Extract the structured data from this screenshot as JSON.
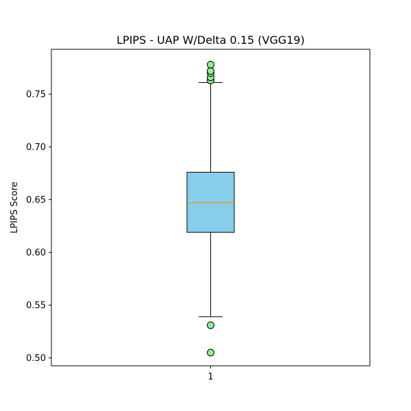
{
  "chart_data": {
    "type": "box",
    "title": "LPIPS - UAP W/Delta 0.15 (VGG19)",
    "xlabel": "",
    "ylabel": "LPIPS Score",
    "categories": [
      "1"
    ],
    "ylim": [
      0.4925,
      0.7925
    ],
    "yticks": [
      0.5,
      0.55,
      0.6,
      0.65,
      0.7,
      0.75
    ],
    "ytick_labels": [
      "0.50",
      "0.55",
      "0.60",
      "0.65",
      "0.70",
      "0.75"
    ],
    "grid": false,
    "boxes": [
      {
        "category": "1",
        "whisker_low": 0.539,
        "q1": 0.619,
        "median": 0.647,
        "q3": 0.676,
        "whisker_high": 0.761,
        "outliers": [
          0.505,
          0.531,
          0.763,
          0.766,
          0.77,
          0.772,
          0.778
        ]
      }
    ],
    "colors": {
      "box_fill": "#87ceeb",
      "median_line": "#ff8c00",
      "outlier_fill": "#90ee90",
      "line": "#000000"
    }
  }
}
